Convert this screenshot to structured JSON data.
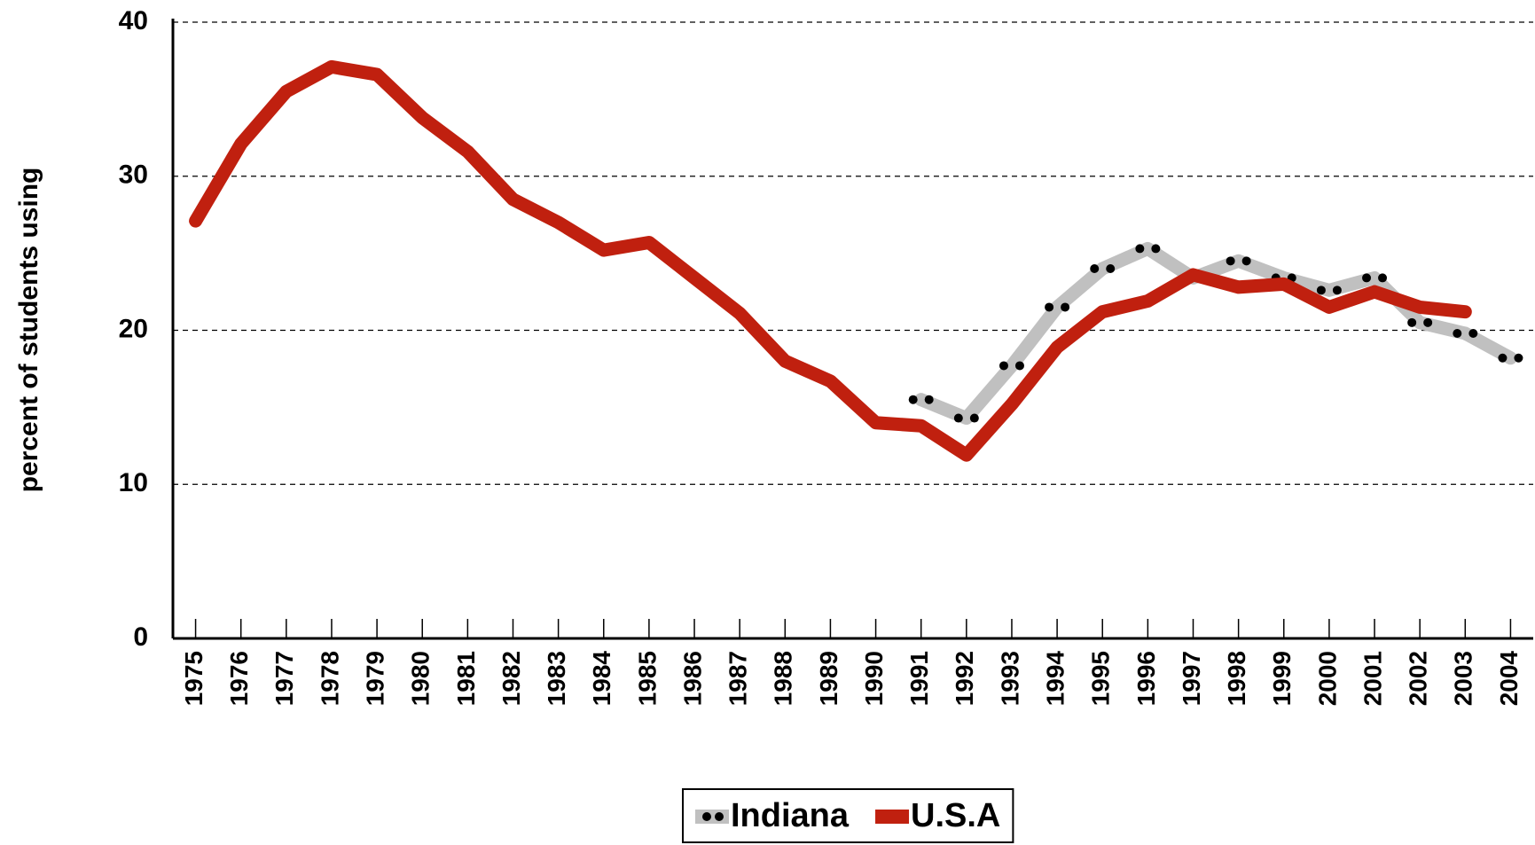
{
  "chart_data": {
    "type": "line",
    "ylabel": "percent of students using",
    "categories": [
      "1975",
      "1976",
      "1977",
      "1978",
      "1979",
      "1980",
      "1981",
      "1982",
      "1983",
      "1984",
      "1985",
      "1986",
      "1987",
      "1988",
      "1989",
      "1990",
      "1991",
      "1992",
      "1993",
      "1994",
      "1995",
      "1996",
      "1997",
      "1998",
      "1999",
      "2000",
      "2001",
      "2002",
      "2003",
      "2004"
    ],
    "series": [
      {
        "name": "Indiana",
        "color": "#c0c0c0",
        "marker_color": "#000000",
        "values": [
          null,
          null,
          null,
          null,
          null,
          null,
          null,
          null,
          null,
          null,
          null,
          null,
          null,
          null,
          null,
          null,
          15.5,
          14.3,
          17.7,
          21.5,
          24.0,
          25.3,
          23.4,
          24.5,
          23.4,
          22.6,
          23.4,
          20.5,
          19.8,
          18.2
        ]
      },
      {
        "name": "U.S.A",
        "color": "#c0200f",
        "values": [
          27.1,
          32.1,
          35.5,
          37.1,
          36.6,
          33.8,
          31.6,
          28.5,
          27.0,
          25.2,
          25.7,
          23.4,
          21.1,
          18.0,
          16.7,
          14.0,
          13.8,
          11.9,
          15.2,
          18.9,
          21.2,
          21.9,
          23.6,
          22.8,
          23.0,
          21.5,
          22.5,
          21.5,
          21.2,
          null
        ]
      }
    ],
    "ylim": [
      0,
      40
    ],
    "yticks": [
      0,
      10,
      20,
      30,
      40
    ],
    "grid": true,
    "legend": "bottom"
  }
}
